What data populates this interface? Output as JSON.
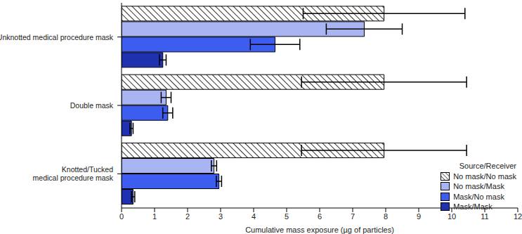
{
  "chart_data": {
    "type": "bar",
    "orientation": "horizontal",
    "categories": [
      "Unknotted medical procedure mask",
      "Double mask",
      "Knotted/Tucked medical procedure mask"
    ],
    "series": [
      {
        "name": "No mask/No mask",
        "color": "#333333",
        "values": [
          7.95,
          7.95,
          7.95
        ],
        "error": [
          2.45,
          2.5,
          2.5
        ]
      },
      {
        "name": "No mask/Mask",
        "color": "#a9b5f2",
        "values": [
          7.35,
          1.35,
          2.8
        ],
        "error": [
          1.15,
          0.15,
          0.08
        ]
      },
      {
        "name": "Mask/No mask",
        "color": "#3d5cf0",
        "values": [
          4.65,
          1.4,
          2.95
        ],
        "error": [
          0.75,
          0.15,
          0.08
        ]
      },
      {
        "name": "Mask/Mask",
        "color": "#1f30b0",
        "values": [
          1.25,
          0.3,
          0.35
        ],
        "error": [
          0.1,
          0.05,
          0.05
        ]
      }
    ],
    "xlabel": "Cumulative mass exposure (µg of particles)",
    "xlim": [
      0,
      12
    ],
    "xticks": [
      0,
      1,
      2,
      3,
      4,
      5,
      6,
      7,
      8,
      9,
      10,
      11,
      12
    ],
    "legend_title": "Source/Receiver",
    "legend": "lower right",
    "grid": false
  }
}
